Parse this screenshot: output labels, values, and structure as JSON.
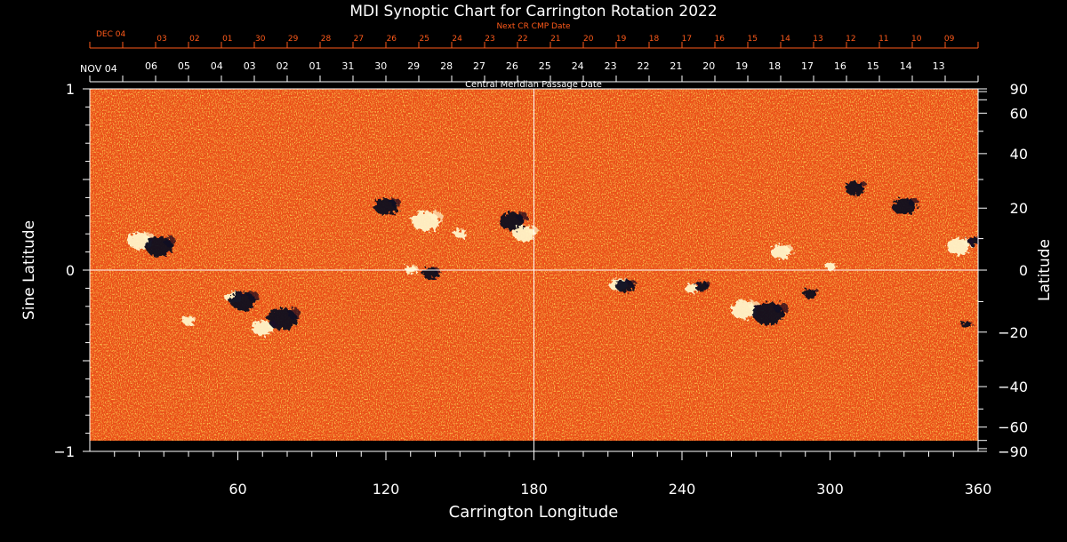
{
  "chart_data": {
    "type": "heatmap",
    "title": "MDI Synoptic Chart for Carrington Rotation 2022",
    "xlabel": "Carrington Longitude",
    "ylabel_left": "Sine Latitude",
    "ylabel_right": "Latitude",
    "xlim": [
      0,
      360
    ],
    "ylim": [
      -1,
      1
    ],
    "x_ticks": [
      60,
      120,
      180,
      240,
      300,
      360
    ],
    "y_ticks_left": [
      {
        "value": 1,
        "label": "1"
      },
      {
        "value": 0,
        "label": "0"
      },
      {
        "value": -1,
        "label": "−1"
      }
    ],
    "y_ticks_right": [
      {
        "lat": 90,
        "label": "90"
      },
      {
        "lat": 60,
        "label": "60"
      },
      {
        "lat": 40,
        "label": "40"
      },
      {
        "lat": 20,
        "label": "20"
      },
      {
        "lat": 0,
        "label": "0"
      },
      {
        "lat": -20,
        "label": "−20"
      },
      {
        "lat": -40,
        "label": "−40"
      },
      {
        "lat": -60,
        "label": "−60"
      },
      {
        "lat": -90,
        "label": "−90"
      }
    ],
    "cmp_axis": {
      "label": "Central Meridian Passage Date",
      "month_label": "NOV 04",
      "dates": [
        "06",
        "05",
        "04",
        "03",
        "02",
        "01",
        "31",
        "30",
        "29",
        "28",
        "27",
        "26",
        "25",
        "24",
        "23",
        "22",
        "21",
        "20",
        "19",
        "18",
        "17",
        "16",
        "15",
        "14",
        "13"
      ]
    },
    "next_cr_axis": {
      "label": "Next CR CMP Date",
      "month_label": "DEC 04",
      "dates": [
        "03",
        "02",
        "01",
        "30",
        "29",
        "28",
        "27",
        "26",
        "25",
        "24",
        "23",
        "22",
        "21",
        "20",
        "19",
        "18",
        "17",
        "16",
        "15",
        "14",
        "13",
        "12",
        "11",
        "10",
        "09"
      ]
    },
    "crosshair": {
      "longitude": 180,
      "sine_latitude": 0
    },
    "active_regions": [
      {
        "lon": 20,
        "sinlat": 0.16,
        "polarity": "white",
        "size": 1.2
      },
      {
        "lon": 28,
        "sinlat": 0.13,
        "polarity": "black",
        "size": 1.4
      },
      {
        "lon": 58,
        "sinlat": -0.15,
        "polarity": "white",
        "size": 0.8
      },
      {
        "lon": 62,
        "sinlat": -0.17,
        "polarity": "black",
        "size": 1.3
      },
      {
        "lon": 70,
        "sinlat": -0.32,
        "polarity": "white",
        "size": 1.1
      },
      {
        "lon": 78,
        "sinlat": -0.27,
        "polarity": "black",
        "size": 1.5
      },
      {
        "lon": 40,
        "sinlat": -0.28,
        "polarity": "white",
        "size": 0.6
      },
      {
        "lon": 120,
        "sinlat": 0.35,
        "polarity": "black",
        "size": 1.2
      },
      {
        "lon": 136,
        "sinlat": 0.27,
        "polarity": "white",
        "size": 1.4
      },
      {
        "lon": 150,
        "sinlat": 0.2,
        "polarity": "white",
        "size": 0.6
      },
      {
        "lon": 171,
        "sinlat": 0.27,
        "polarity": "black",
        "size": 1.3
      },
      {
        "lon": 176,
        "sinlat": 0.2,
        "polarity": "white",
        "size": 1.1
      },
      {
        "lon": 138,
        "sinlat": -0.02,
        "polarity": "black",
        "size": 0.8
      },
      {
        "lon": 130,
        "sinlat": 0.0,
        "polarity": "white",
        "size": 0.6
      },
      {
        "lon": 214,
        "sinlat": -0.08,
        "polarity": "white",
        "size": 0.9
      },
      {
        "lon": 217,
        "sinlat": -0.09,
        "polarity": "black",
        "size": 0.9
      },
      {
        "lon": 244,
        "sinlat": -0.1,
        "polarity": "white",
        "size": 0.7
      },
      {
        "lon": 248,
        "sinlat": -0.09,
        "polarity": "black",
        "size": 0.7
      },
      {
        "lon": 265,
        "sinlat": -0.22,
        "polarity": "white",
        "size": 1.3
      },
      {
        "lon": 275,
        "sinlat": -0.24,
        "polarity": "black",
        "size": 1.6
      },
      {
        "lon": 280,
        "sinlat": 0.1,
        "polarity": "white",
        "size": 1.0
      },
      {
        "lon": 292,
        "sinlat": -0.13,
        "polarity": "black",
        "size": 0.7
      },
      {
        "lon": 310,
        "sinlat": 0.45,
        "polarity": "black",
        "size": 1.0
      },
      {
        "lon": 330,
        "sinlat": 0.35,
        "polarity": "black",
        "size": 1.2
      },
      {
        "lon": 352,
        "sinlat": 0.13,
        "polarity": "white",
        "size": 1.2
      },
      {
        "lon": 358,
        "sinlat": 0.16,
        "polarity": "black",
        "size": 0.6
      },
      {
        "lon": 300,
        "sinlat": 0.02,
        "polarity": "white",
        "size": 0.5
      },
      {
        "lon": 355,
        "sinlat": -0.3,
        "polarity": "black",
        "size": 0.5
      }
    ],
    "colors": {
      "background": "#000000",
      "field_base": "#f0521a",
      "positive": "#fff3c8",
      "negative": "#0a0820",
      "date_axis_accent": "#ff5a1a",
      "text": "#ffffff"
    }
  }
}
